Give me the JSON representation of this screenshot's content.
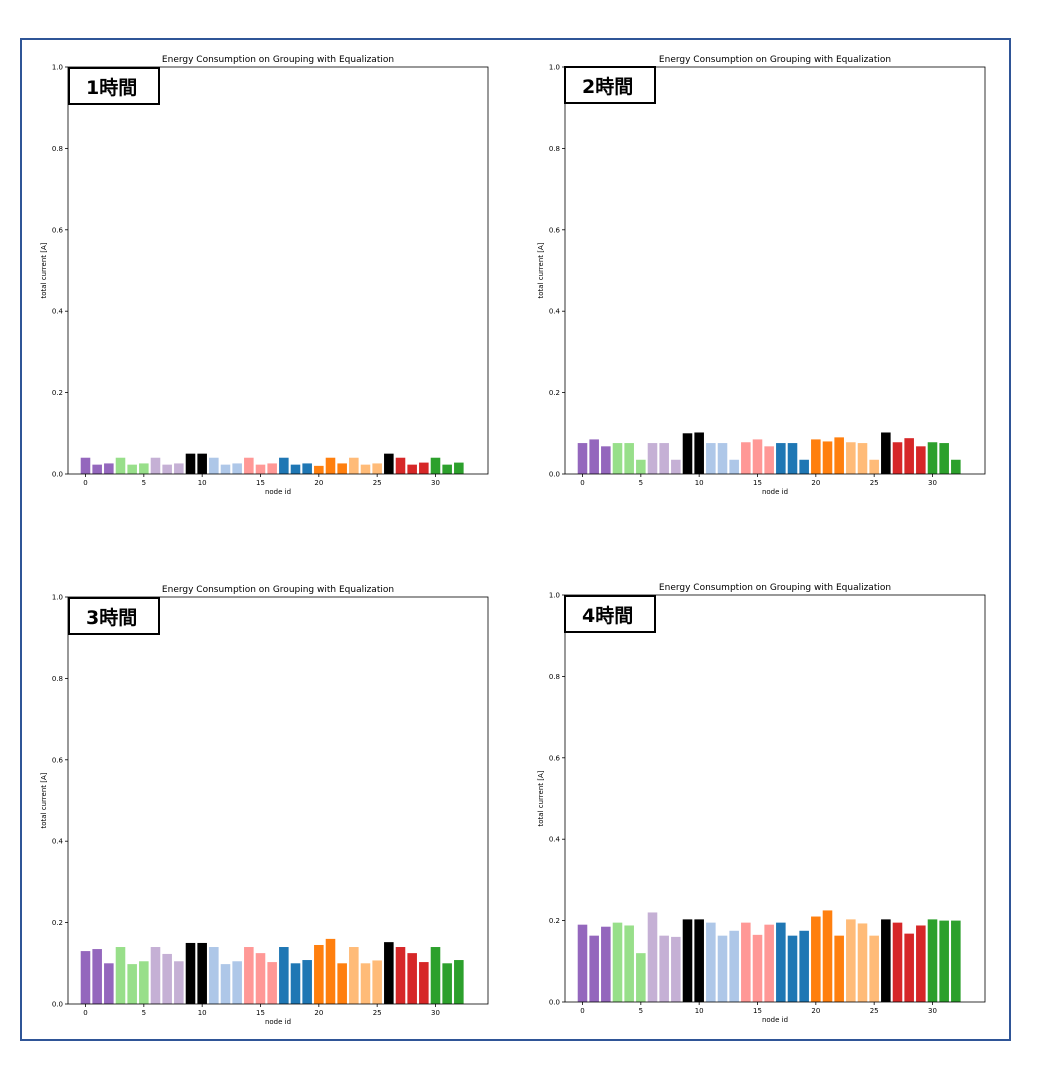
{
  "colors": {
    "border": "#2f5597",
    "node_colors": [
      "#9467bd",
      "#9467bd",
      "#9467bd",
      "#98df8a",
      "#98df8a",
      "#98df8a",
      "#c5b0d5",
      "#c5b0d5",
      "#c5b0d5",
      "#000000",
      "#000000",
      "#aec7e8",
      "#aec7e8",
      "#aec7e8",
      "#ff9896",
      "#ff9896",
      "#ff9896",
      "#1f77b4",
      "#1f77b4",
      "#1f77b4",
      "#ff7f0e",
      "#ff7f0e",
      "#ff7f0e",
      "#ffbb78",
      "#ffbb78",
      "#ffbb78",
      "#000000",
      "#d62728",
      "#d62728",
      "#d62728",
      "#2ca02c",
      "#2ca02c",
      "#2ca02c"
    ]
  },
  "chart_data": [
    {
      "type": "bar",
      "title": "Energy Consumption on Grouping with Equalization",
      "label": "1時間",
      "xlabel": "node id",
      "ylabel": "total current [A]",
      "ylim": [
        0,
        1.0
      ],
      "yticks": [
        "0.0",
        "0.2",
        "0.4",
        "0.6",
        "0.8",
        "1.0"
      ],
      "xticks": [
        "0",
        "5",
        "10",
        "15",
        "20",
        "25",
        "30"
      ],
      "x": [
        0,
        1,
        2,
        3,
        4,
        5,
        6,
        7,
        8,
        9,
        10,
        11,
        12,
        13,
        14,
        15,
        16,
        17,
        18,
        19,
        20,
        21,
        22,
        23,
        24,
        25,
        26,
        27,
        28,
        29,
        30,
        31,
        32
      ],
      "values": [
        0.04,
        0.023,
        0.026,
        0.04,
        0.023,
        0.026,
        0.04,
        0.023,
        0.026,
        0.05,
        0.05,
        0.04,
        0.023,
        0.026,
        0.04,
        0.023,
        0.026,
        0.04,
        0.023,
        0.026,
        0.02,
        0.04,
        0.026,
        0.04,
        0.023,
        0.026,
        0.05,
        0.04,
        0.023,
        0.028,
        0.04,
        0.023,
        0.028
      ]
    },
    {
      "type": "bar",
      "title": "Energy Consumption on Grouping with Equalization",
      "label": "2時間",
      "xlabel": "node id",
      "ylabel": "total current [A]",
      "ylim": [
        0,
        1.0
      ],
      "yticks": [
        "0.0",
        "0.2",
        "0.4",
        "0.6",
        "0.8",
        "1.0"
      ],
      "xticks": [
        "0",
        "5",
        "10",
        "15",
        "20",
        "25",
        "30"
      ],
      "x": [
        0,
        1,
        2,
        3,
        4,
        5,
        6,
        7,
        8,
        9,
        10,
        11,
        12,
        13,
        14,
        15,
        16,
        17,
        18,
        19,
        20,
        21,
        22,
        23,
        24,
        25,
        26,
        27,
        28,
        29,
        30,
        31,
        32
      ],
      "values": [
        0.076,
        0.085,
        0.068,
        0.076,
        0.076,
        0.035,
        0.076,
        0.076,
        0.035,
        0.1,
        0.102,
        0.076,
        0.076,
        0.035,
        0.078,
        0.085,
        0.068,
        0.076,
        0.076,
        0.035,
        0.085,
        0.08,
        0.09,
        0.078,
        0.076,
        0.035,
        0.102,
        0.078,
        0.088,
        0.068,
        0.078,
        0.076,
        0.035
      ]
    },
    {
      "type": "bar",
      "title": "Energy Consumption on Grouping with Equalization",
      "label": "3時間",
      "xlabel": "node id",
      "ylabel": "total current [A]",
      "ylim": [
        0,
        1.0
      ],
      "yticks": [
        "0.0",
        "0.2",
        "0.4",
        "0.6",
        "0.8",
        "1.0"
      ],
      "xticks": [
        "0",
        "5",
        "10",
        "15",
        "20",
        "25",
        "30"
      ],
      "x": [
        0,
        1,
        2,
        3,
        4,
        5,
        6,
        7,
        8,
        9,
        10,
        11,
        12,
        13,
        14,
        15,
        16,
        17,
        18,
        19,
        20,
        21,
        22,
        23,
        24,
        25,
        26,
        27,
        28,
        29,
        30,
        31,
        32
      ],
      "values": [
        0.13,
        0.135,
        0.1,
        0.14,
        0.098,
        0.105,
        0.14,
        0.123,
        0.105,
        0.15,
        0.15,
        0.14,
        0.098,
        0.105,
        0.14,
        0.125,
        0.103,
        0.14,
        0.1,
        0.108,
        0.145,
        0.16,
        0.1,
        0.14,
        0.1,
        0.107,
        0.152,
        0.14,
        0.125,
        0.103,
        0.14,
        0.1,
        0.108
      ]
    },
    {
      "type": "bar",
      "title": "Energy Consumption on Grouping with Equalization",
      "label": "4時間",
      "xlabel": "node id",
      "ylabel": "total current [A]",
      "ylim": [
        0,
        1.0
      ],
      "yticks": [
        "0.0",
        "0.2",
        "0.4",
        "0.6",
        "0.8",
        "1.0"
      ],
      "xticks": [
        "0",
        "5",
        "10",
        "15",
        "20",
        "25",
        "30"
      ],
      "x": [
        0,
        1,
        2,
        3,
        4,
        5,
        6,
        7,
        8,
        9,
        10,
        11,
        12,
        13,
        14,
        15,
        16,
        17,
        18,
        19,
        20,
        21,
        22,
        23,
        24,
        25,
        26,
        27,
        28,
        29,
        30,
        31,
        32
      ],
      "values": [
        0.19,
        0.163,
        0.185,
        0.195,
        0.188,
        0.12,
        0.22,
        0.163,
        0.16,
        0.203,
        0.203,
        0.195,
        0.163,
        0.175,
        0.195,
        0.165,
        0.19,
        0.195,
        0.163,
        0.175,
        0.21,
        0.225,
        0.163,
        0.203,
        0.193,
        0.163,
        0.203,
        0.195,
        0.168,
        0.188,
        0.203,
        0.2,
        0.2
      ]
    }
  ]
}
